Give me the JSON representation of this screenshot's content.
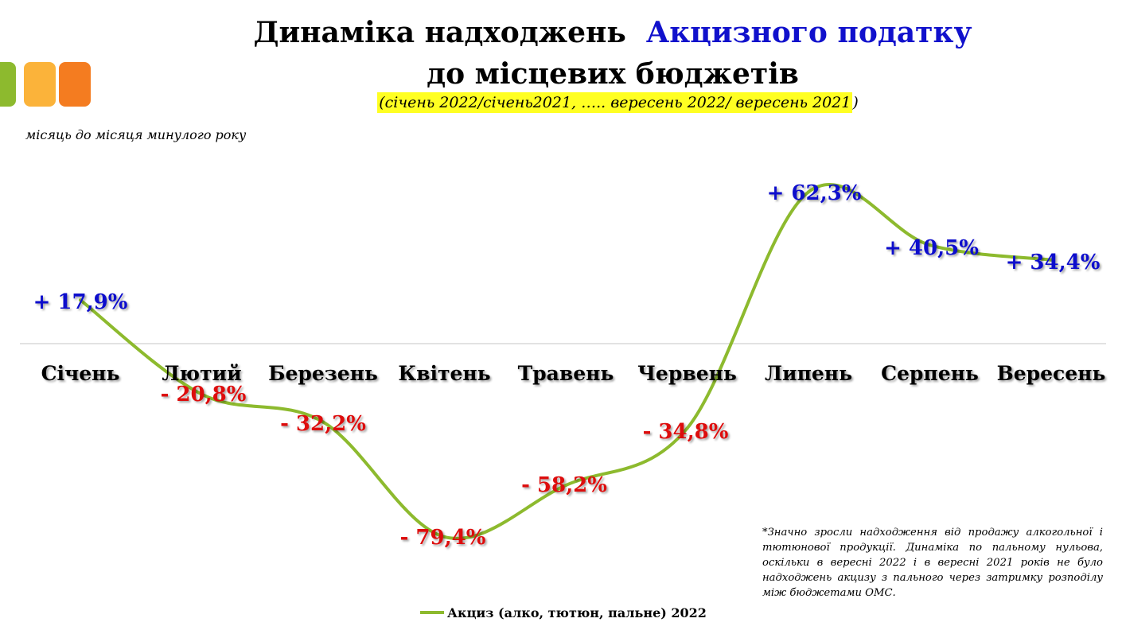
{
  "colors": {
    "line": "#8dba2e",
    "positive_label": "#1111cc",
    "negative_label": "#dd1111",
    "axis_line": "#d9d9d9",
    "title_accent": "#1111cc",
    "subtitle_highlight": "#ffff22",
    "decor_squares": [
      "#8dba2e",
      "#fbb33a",
      "#f47c20"
    ]
  },
  "header": {
    "title_part1": "Динаміка надходжень",
    "title_part2": "Акцизного податку",
    "title_line2": "до місцевих бюджетів",
    "subtitle": "(січень 2022/січень2021, ….. вересень 2022/ вересень 2021",
    "subtitle_close": ")"
  },
  "note_left": "місяць до місяця минулого року",
  "footnote": "*Значно зросли надходження від продажу алкогольної і тютюнової продукції. Динаміка по пальному нульова, оскільки в вересні 2022 і в вересні 2021 років не було надходжень акцизу з пального через затримку розподілу між бюджетами ОМС.",
  "chart_data": {
    "type": "line",
    "categories": [
      "Січень",
      "Лютий",
      "Березень",
      "Квітень",
      "Травень",
      "Червень",
      "Липень",
      "Серпень",
      "Вересень"
    ],
    "series": [
      {
        "name": "Акциз (алко, тютюн, пальне) 2022",
        "values": [
          17.9,
          -20.8,
          -32.2,
          -79.4,
          -58.2,
          -34.8,
          62.3,
          40.5,
          34.4
        ],
        "data_labels": [
          "+ 17,9%",
          "- 20,8%",
          "- 32,2%",
          "- 79,4%",
          "- 58,2%",
          "- 34,8%",
          "+ 62,3%",
          "+ 40,5%",
          "+ 34,4%"
        ]
      }
    ],
    "smooth": true,
    "grid": false,
    "legend_position": "bottom",
    "axis_labels_position": "on zero line"
  }
}
